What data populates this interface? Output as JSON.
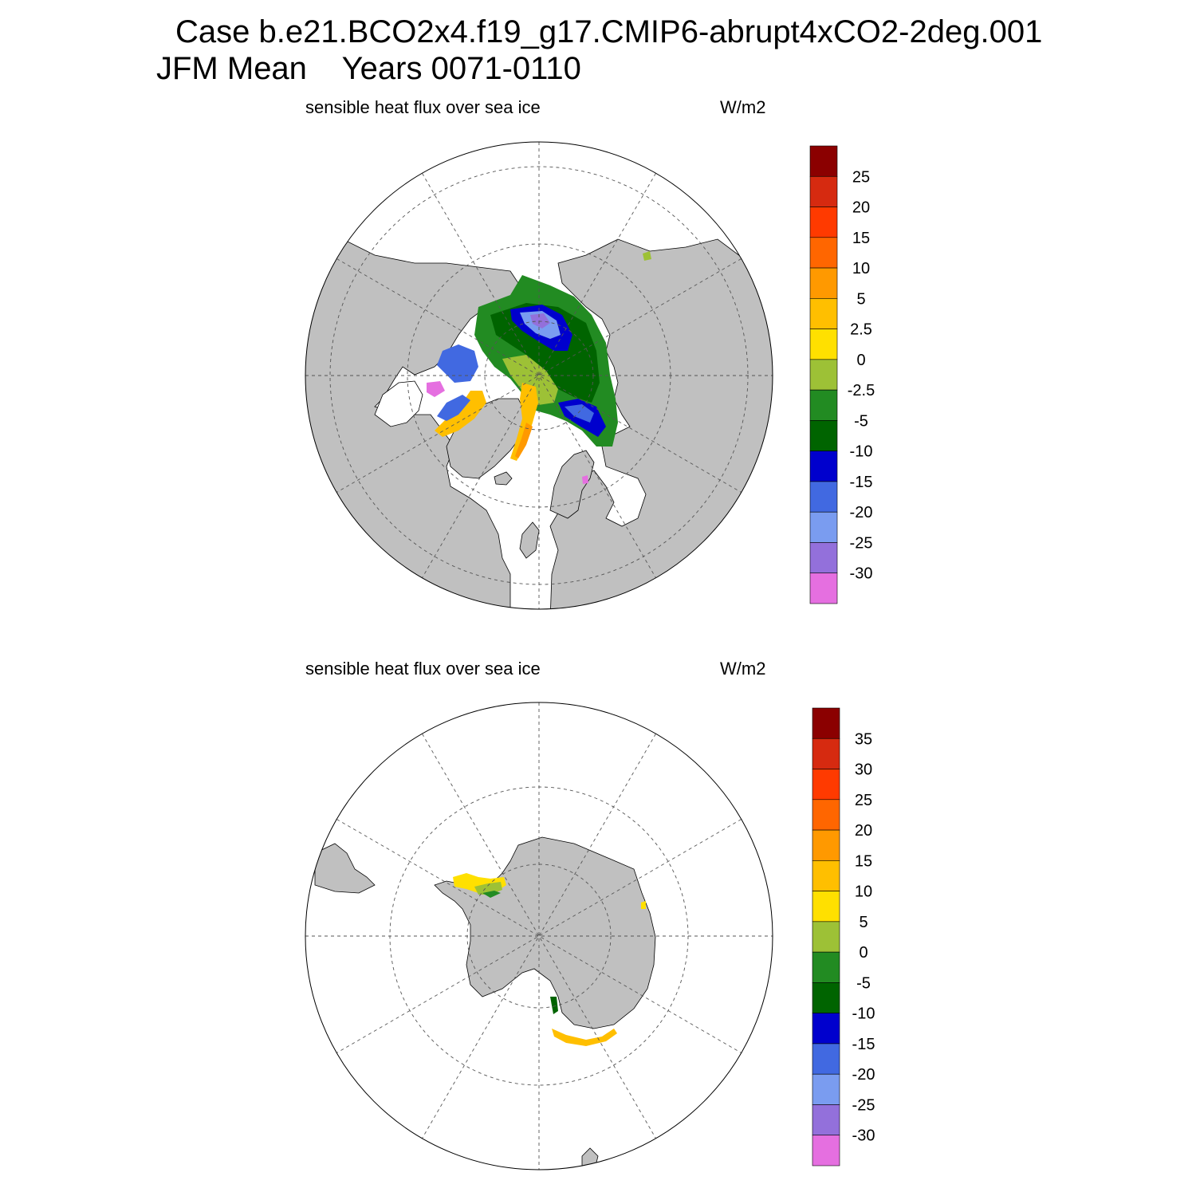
{
  "header": {
    "case_title": "Case b.e21.BCO2x4.f19_g17.CMIP6-abrupt4xCO2-2deg.001",
    "season": "JFM Mean",
    "years": "Years 0071-0110"
  },
  "panels": [
    {
      "hemisphere": "north",
      "variable": "sensible heat flux over sea ice",
      "units": "W/m2",
      "colorbar_labels": [
        "25",
        "20",
        "15",
        "10",
        "5",
        "2.5",
        "0",
        "-2.5",
        "-5",
        "-10",
        "-15",
        "-20",
        "-25",
        "-30"
      ]
    },
    {
      "hemisphere": "south",
      "variable": "sensible heat flux over sea ice",
      "units": "W/m2",
      "colorbar_labels": [
        "35",
        "30",
        "25",
        "20",
        "15",
        "10",
        "5",
        "0",
        "-5",
        "-10",
        "-15",
        "-20",
        "-25",
        "-30"
      ]
    }
  ],
  "colors": {
    "land": "#c0c0c0",
    "ocean": "#ffffff",
    "colorbar_top_to_bottom": [
      "#8b0000",
      "#d62a10",
      "#ff3a00",
      "#ff6600",
      "#ff9900",
      "#ffbf00",
      "#ffe000",
      "#9dc136",
      "#228b22",
      "#006400",
      "#0000cd",
      "#4169e1",
      "#7a9cf0",
      "#9370db",
      "#e56fe0"
    ]
  }
}
